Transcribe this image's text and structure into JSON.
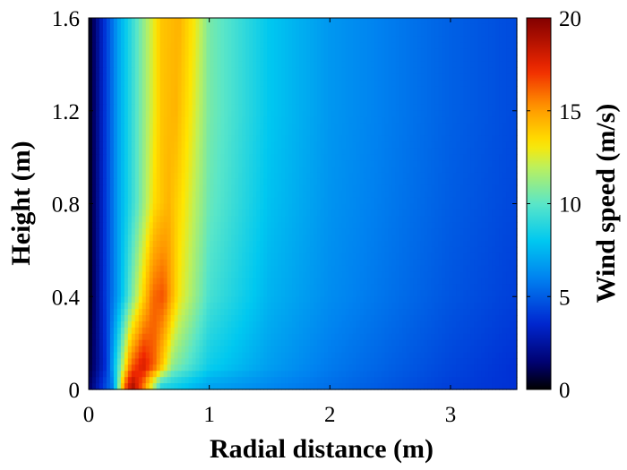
{
  "chart_data": {
    "type": "heatmap",
    "title": "",
    "xlabel": "Radial distance (m)",
    "ylabel": "Height (m)",
    "xlim": [
      0,
      3.55
    ],
    "ylim": [
      0,
      1.6
    ],
    "x_ticks": [
      {
        "value": 0,
        "label": "0"
      },
      {
        "value": 1,
        "label": "1"
      },
      {
        "value": 2,
        "label": "2"
      },
      {
        "value": 3,
        "label": "3"
      }
    ],
    "y_ticks": [
      {
        "value": 0,
        "label": "0"
      },
      {
        "value": 0.4,
        "label": "0.4"
      },
      {
        "value": 0.8,
        "label": "0.8"
      },
      {
        "value": 1.2,
        "label": "1.2"
      },
      {
        "value": 1.6,
        "label": "1.6"
      }
    ],
    "colorbar": {
      "label": "Wind speed (m/s)",
      "range": [
        0,
        20
      ],
      "colormap": "jet",
      "ticks": [
        {
          "value": 0,
          "label": "0"
        },
        {
          "value": 5,
          "label": "5"
        },
        {
          "value": 10,
          "label": "10"
        },
        {
          "value": 15,
          "label": "15"
        },
        {
          "value": 20,
          "label": "20"
        }
      ]
    },
    "field_description": "Wind speed near zero at the axis (r=0), rising steeply to a jet maximum near r≈0.6 m (about 14–15 m/s), peaking near 19 m/s close to the ground at r≈0.35–0.45 m, then decaying outward to about 3–4 m/s at r≈3.5 m.",
    "radial_profiles": [
      {
        "height": 0.02,
        "r": [
          0,
          0.2,
          0.3,
          0.36,
          0.45,
          0.6,
          1.0,
          1.5,
          2.0,
          3.0,
          3.55
        ],
        "speed": [
          1,
          6,
          16,
          19,
          16,
          9,
          7,
          6.2,
          5.5,
          4.2,
          3.8
        ]
      },
      {
        "height": 0.1,
        "r": [
          0,
          0.15,
          0.25,
          0.35,
          0.45,
          0.55,
          0.7,
          1.0,
          1.5,
          2.0,
          3.0,
          3.55
        ],
        "speed": [
          0.5,
          4,
          10,
          16,
          18,
          16,
          11,
          8.3,
          6.8,
          5.8,
          4.4,
          3.8
        ]
      },
      {
        "height": 0.4,
        "r": [
          0,
          0.1,
          0.25,
          0.4,
          0.53,
          0.62,
          0.75,
          1.0,
          1.5,
          2.0,
          3.0,
          3.55
        ],
        "speed": [
          0,
          3,
          7,
          12,
          16,
          16.5,
          13,
          9.6,
          7.4,
          6.3,
          4.8,
          4.2
        ]
      },
      {
        "height": 0.8,
        "r": [
          0,
          0.1,
          0.25,
          0.4,
          0.55,
          0.66,
          0.8,
          1.0,
          1.5,
          2.0,
          3.0,
          3.55
        ],
        "speed": [
          0,
          3,
          7,
          10,
          13.5,
          14.5,
          13,
          10.3,
          7.8,
          6.5,
          5.0,
          4.4
        ]
      },
      {
        "height": 1.2,
        "r": [
          0,
          0.1,
          0.25,
          0.4,
          0.6,
          0.72,
          0.85,
          1.0,
          1.5,
          2.0,
          3.0,
          3.55
        ],
        "speed": [
          0,
          3,
          7,
          10,
          14,
          14.5,
          13,
          10.6,
          8.0,
          6.6,
          5.1,
          4.5
        ]
      },
      {
        "height": 1.6,
        "r": [
          0,
          0.1,
          0.25,
          0.4,
          0.6,
          0.75,
          0.88,
          1.0,
          1.5,
          2.0,
          3.0,
          3.55
        ],
        "speed": [
          0,
          3,
          7,
          10,
          14,
          14.5,
          13,
          10.6,
          8.0,
          6.6,
          5.1,
          4.5
        ]
      }
    ]
  }
}
